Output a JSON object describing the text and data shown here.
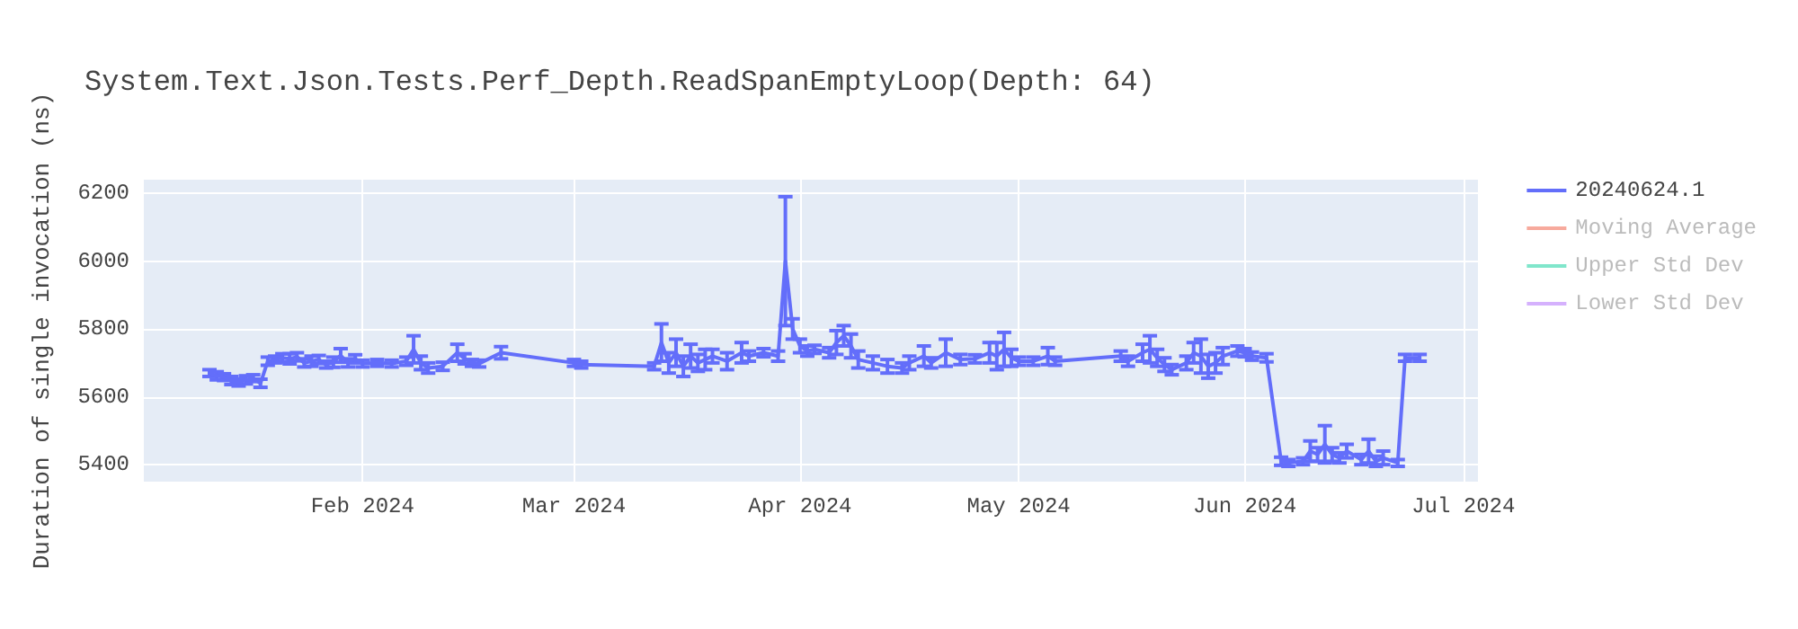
{
  "chart_data": {
    "type": "line",
    "title": "System.Text.Json.Tests.Perf_Depth.ReadSpanEmptyLoop(Depth: 64)",
    "ylabel": "Duration of single invocation (ns)",
    "xlim": [
      "2024-01-02",
      "2024-07-03"
    ],
    "xticks": [
      {
        "value": "2024-02-01",
        "label": "Feb 2024"
      },
      {
        "value": "2024-03-01",
        "label": "Mar 2024"
      },
      {
        "value": "2024-04-01",
        "label": "Apr 2024"
      },
      {
        "value": "2024-05-01",
        "label": "May 2024"
      },
      {
        "value": "2024-06-01",
        "label": "Jun 2024"
      },
      {
        "value": "2024-07-01",
        "label": "Jul 2024"
      }
    ],
    "ylim": [
      5350,
      6240
    ],
    "yticks": [
      5400,
      5600,
      5800,
      6000,
      6200
    ],
    "grid": true,
    "legend": "top right",
    "marker": "none",
    "series": [
      {
        "name": "20240624.1",
        "color": "#636efa",
        "x": [
          "2024-01-11",
          "2024-01-12",
          "2024-01-13",
          "2024-01-14",
          "2024-01-15",
          "2024-01-16",
          "2024-01-17",
          "2024-01-18",
          "2024-01-19",
          "2024-01-20",
          "2024-01-21",
          "2024-01-22",
          "2024-01-23",
          "2024-01-24",
          "2024-01-25",
          "2024-01-26",
          "2024-01-27",
          "2024-01-28",
          "2024-01-29",
          "2024-01-30",
          "2024-01-31",
          "2024-02-01",
          "2024-02-03",
          "2024-02-05",
          "2024-02-07",
          "2024-02-08",
          "2024-02-09",
          "2024-02-10",
          "2024-02-12",
          "2024-02-14",
          "2024-02-15",
          "2024-02-16",
          "2024-02-17",
          "2024-02-20",
          "2024-03-01",
          "2024-03-02",
          "2024-03-12",
          "2024-03-13",
          "2024-03-14",
          "2024-03-15",
          "2024-03-16",
          "2024-03-17",
          "2024-03-18",
          "2024-03-19",
          "2024-03-20",
          "2024-03-22",
          "2024-03-24",
          "2024-03-25",
          "2024-03-27",
          "2024-03-29",
          "2024-03-30",
          "2024-03-31",
          "2024-04-01",
          "2024-04-02",
          "2024-04-03",
          "2024-04-05",
          "2024-04-06",
          "2024-04-07",
          "2024-04-08",
          "2024-04-09",
          "2024-04-11",
          "2024-04-13",
          "2024-04-15",
          "2024-04-16",
          "2024-04-18",
          "2024-04-19",
          "2024-04-21",
          "2024-04-23",
          "2024-04-25",
          "2024-04-27",
          "2024-04-28",
          "2024-04-29",
          "2024-04-30",
          "2024-05-01",
          "2024-05-03",
          "2024-05-05",
          "2024-05-06",
          "2024-05-15",
          "2024-05-16",
          "2024-05-18",
          "2024-05-19",
          "2024-05-20",
          "2024-05-21",
          "2024-05-22",
          "2024-05-24",
          "2024-05-25",
          "2024-05-26",
          "2024-05-27",
          "2024-05-28",
          "2024-05-29",
          "2024-05-31",
          "2024-06-01",
          "2024-06-02",
          "2024-06-04",
          "2024-06-06",
          "2024-06-07",
          "2024-06-09",
          "2024-06-10",
          "2024-06-11",
          "2024-06-12",
          "2024-06-13",
          "2024-06-14",
          "2024-06-15",
          "2024-06-17",
          "2024-06-18",
          "2024-06-19",
          "2024-06-20",
          "2024-06-22",
          "2024-06-23",
          "2024-06-25"
        ],
        "values": [
          5670,
          5662,
          5658,
          5648,
          5642,
          5650,
          5655,
          5640,
          5705,
          5710,
          5715,
          5712,
          5718,
          5700,
          5705,
          5710,
          5695,
          5702,
          5722,
          5700,
          5712,
          5698,
          5700,
          5698,
          5705,
          5740,
          5700,
          5685,
          5690,
          5730,
          5712,
          5700,
          5698,
          5730,
          5700,
          5695,
          5690,
          5760,
          5700,
          5730,
          5690,
          5720,
          5700,
          5710,
          5720,
          5705,
          5730,
          5720,
          5730,
          5720,
          6000,
          5800,
          5750,
          5735,
          5740,
          5730,
          5760,
          5780,
          5750,
          5710,
          5700,
          5690,
          5685,
          5700,
          5720,
          5700,
          5730,
          5710,
          5712,
          5730,
          5720,
          5740,
          5715,
          5705,
          5705,
          5720,
          5705,
          5720,
          5705,
          5730,
          5740,
          5715,
          5695,
          5680,
          5700,
          5730,
          5720,
          5690,
          5700,
          5720,
          5735,
          5730,
          5720,
          5715,
          5410,
          5405,
          5410,
          5440,
          5430,
          5460,
          5430,
          5420,
          5440,
          5415,
          5440,
          5410,
          5420,
          5405,
          5715,
          5715
        ],
        "errors": [
          10,
          12,
          10,
          12,
          10,
          12,
          10,
          12,
          12,
          10,
          12,
          15,
          12,
          12,
          15,
          12,
          10,
          15,
          20,
          12,
          12,
          10,
          10,
          10,
          12,
          40,
          20,
          15,
          12,
          25,
          15,
          10,
          10,
          18,
          10,
          10,
          10,
          55,
          30,
          40,
          30,
          35,
          25,
          30,
          20,
          25,
          30,
          15,
          12,
          15,
          190,
          30,
          20,
          15,
          12,
          15,
          35,
          30,
          35,
          25,
          20,
          20,
          15,
          20,
          30,
          15,
          40,
          15,
          12,
          30,
          40,
          50,
          25,
          12,
          12,
          25,
          12,
          15,
          15,
          25,
          40,
          25,
          20,
          15,
          20,
          30,
          50,
          35,
          30,
          25,
          15,
          12,
          12,
          12,
          12,
          10,
          10,
          30,
          20,
          55,
          20,
          15,
          20,
          15,
          35,
          15,
          20,
          10,
          10,
          10
        ]
      },
      {
        "name": "Moving Average",
        "color": "#f7aa9d"
      },
      {
        "name": "Upper Std Dev",
        "color": "#80e6cb"
      },
      {
        "name": "Lower Std Dev",
        "color": "#d5b1fd"
      }
    ]
  }
}
